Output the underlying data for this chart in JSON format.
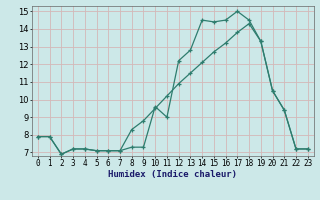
{
  "xlabel": "Humidex (Indice chaleur)",
  "bg_color": "#cce8e8",
  "grid_color": "#d4b8b8",
  "line_color": "#2e7d6e",
  "xlim": [
    -0.5,
    23.5
  ],
  "ylim": [
    6.8,
    15.3
  ],
  "xticks": [
    0,
    1,
    2,
    3,
    4,
    5,
    6,
    7,
    8,
    9,
    10,
    11,
    12,
    13,
    14,
    15,
    16,
    17,
    18,
    19,
    20,
    21,
    22,
    23
  ],
  "yticks": [
    7,
    8,
    9,
    10,
    11,
    12,
    13,
    14,
    15
  ],
  "series1_x": [
    0,
    1,
    2,
    3,
    4,
    5,
    6,
    7,
    8,
    9,
    10,
    11,
    12,
    13,
    14,
    15,
    16,
    17,
    18,
    19,
    20,
    21,
    22,
    23
  ],
  "series1_y": [
    7.9,
    7.9,
    6.9,
    7.2,
    7.2,
    7.1,
    7.1,
    7.1,
    7.3,
    7.3,
    9.6,
    9.0,
    12.2,
    12.8,
    14.5,
    14.4,
    14.5,
    15.0,
    14.5,
    13.3,
    10.5,
    9.4,
    7.2,
    7.2
  ],
  "series2_x": [
    0,
    1,
    2,
    3,
    4,
    5,
    6,
    7,
    8,
    9,
    10,
    11,
    12,
    13,
    14,
    15,
    16,
    17,
    18,
    19,
    20,
    21,
    22,
    23
  ],
  "series2_y": [
    7.9,
    7.9,
    6.9,
    7.2,
    7.2,
    7.1,
    7.1,
    7.1,
    8.3,
    8.8,
    9.5,
    10.2,
    10.9,
    11.5,
    12.1,
    12.7,
    13.2,
    13.8,
    14.3,
    13.3,
    10.5,
    9.4,
    7.2,
    7.2
  ],
  "tick_fontsize": 5.5,
  "xlabel_fontsize": 6.5
}
